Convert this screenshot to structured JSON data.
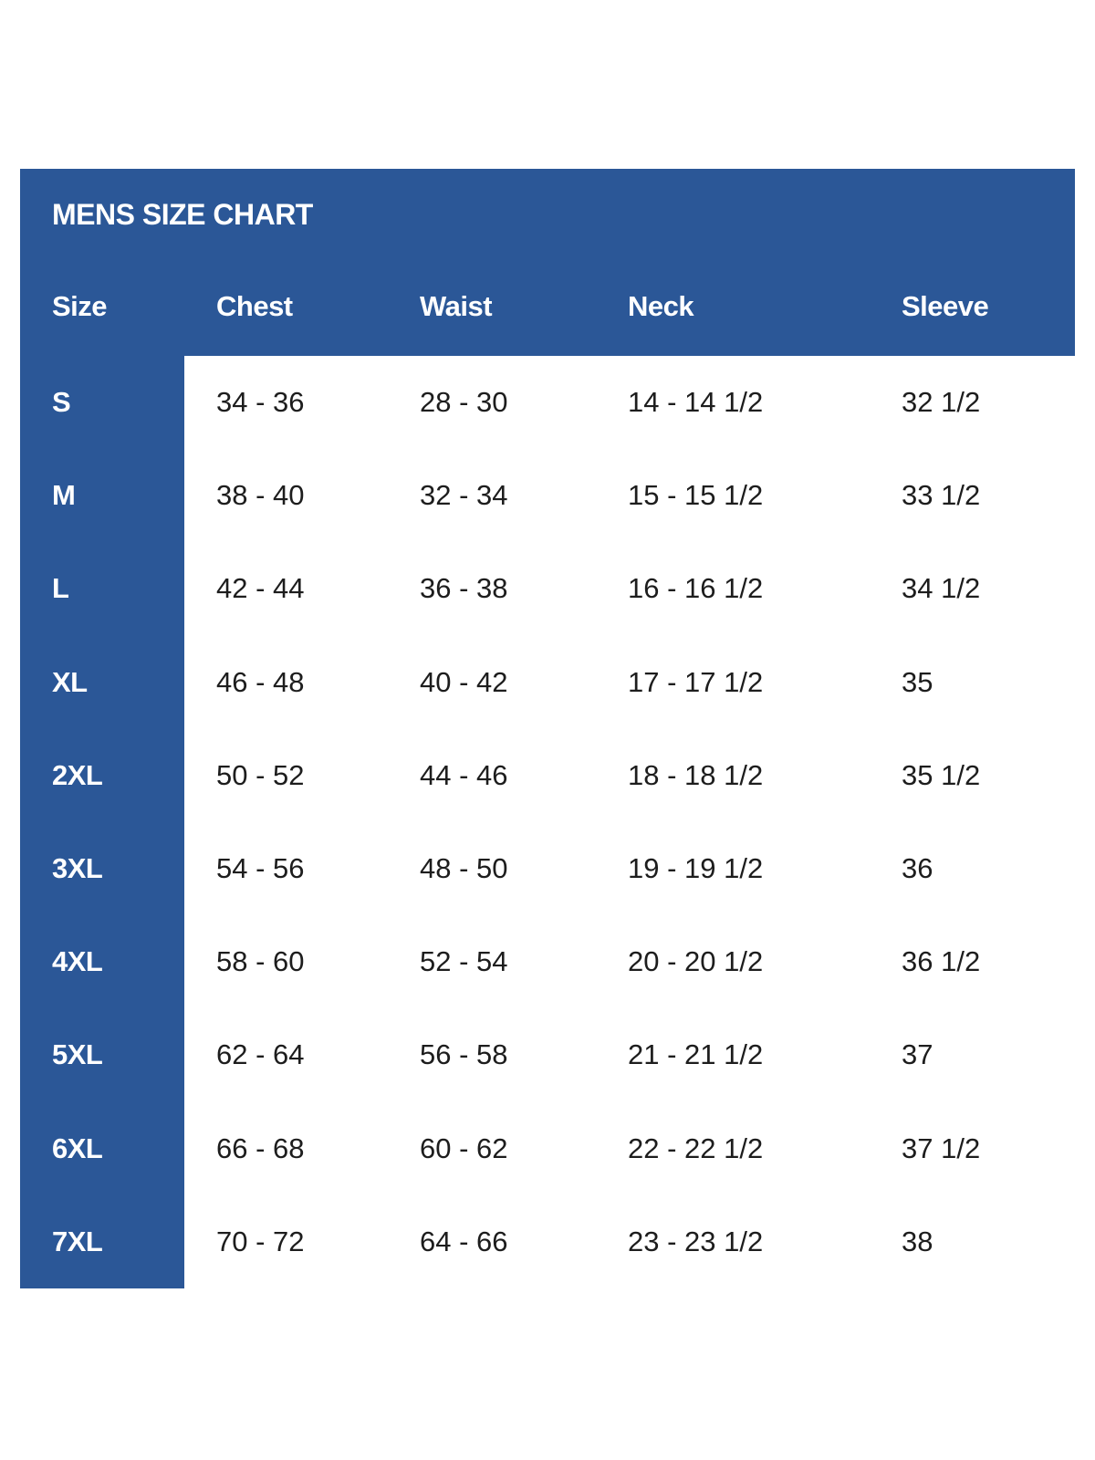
{
  "colors": {
    "panel_blue": "#2b5797",
    "header_text": "#ffffff",
    "data_text": "#1d1d1d",
    "background": "#ffffff"
  },
  "chart_data": {
    "type": "table",
    "title": "MENS SIZE CHART",
    "columns": [
      "Size",
      "Chest",
      "Waist",
      "Neck",
      "Sleeve"
    ],
    "rows": [
      [
        "S",
        "34 - 36",
        "28 - 30",
        "14 - 14 1/2",
        "32 1/2"
      ],
      [
        "M",
        "38 - 40",
        "32 - 34",
        "15 - 15 1/2",
        "33 1/2"
      ],
      [
        "L",
        "42 - 44",
        "36 - 38",
        "16 - 16 1/2",
        "34 1/2"
      ],
      [
        "XL",
        "46 - 48",
        "40 - 42",
        "17 - 17 1/2",
        "35"
      ],
      [
        "2XL",
        "50 - 52",
        "44 - 46",
        "18 - 18 1/2",
        "35 1/2"
      ],
      [
        "3XL",
        "54 - 56",
        "48 - 50",
        "19 - 19 1/2",
        "36"
      ],
      [
        "4XL",
        "58 - 60",
        "52 - 54",
        "20 - 20 1/2",
        "36 1/2"
      ],
      [
        "5XL",
        "62 - 64",
        "56 - 58",
        "21 - 21 1/2",
        "37"
      ],
      [
        "6XL",
        "66 - 68",
        "60 - 62",
        "22 - 22 1/2",
        "37 1/2"
      ],
      [
        "7XL",
        "70 - 72",
        "64 - 66",
        "23 - 23 1/2",
        "38"
      ]
    ],
    "layout": {
      "legend": "none",
      "grid": "off"
    }
  }
}
